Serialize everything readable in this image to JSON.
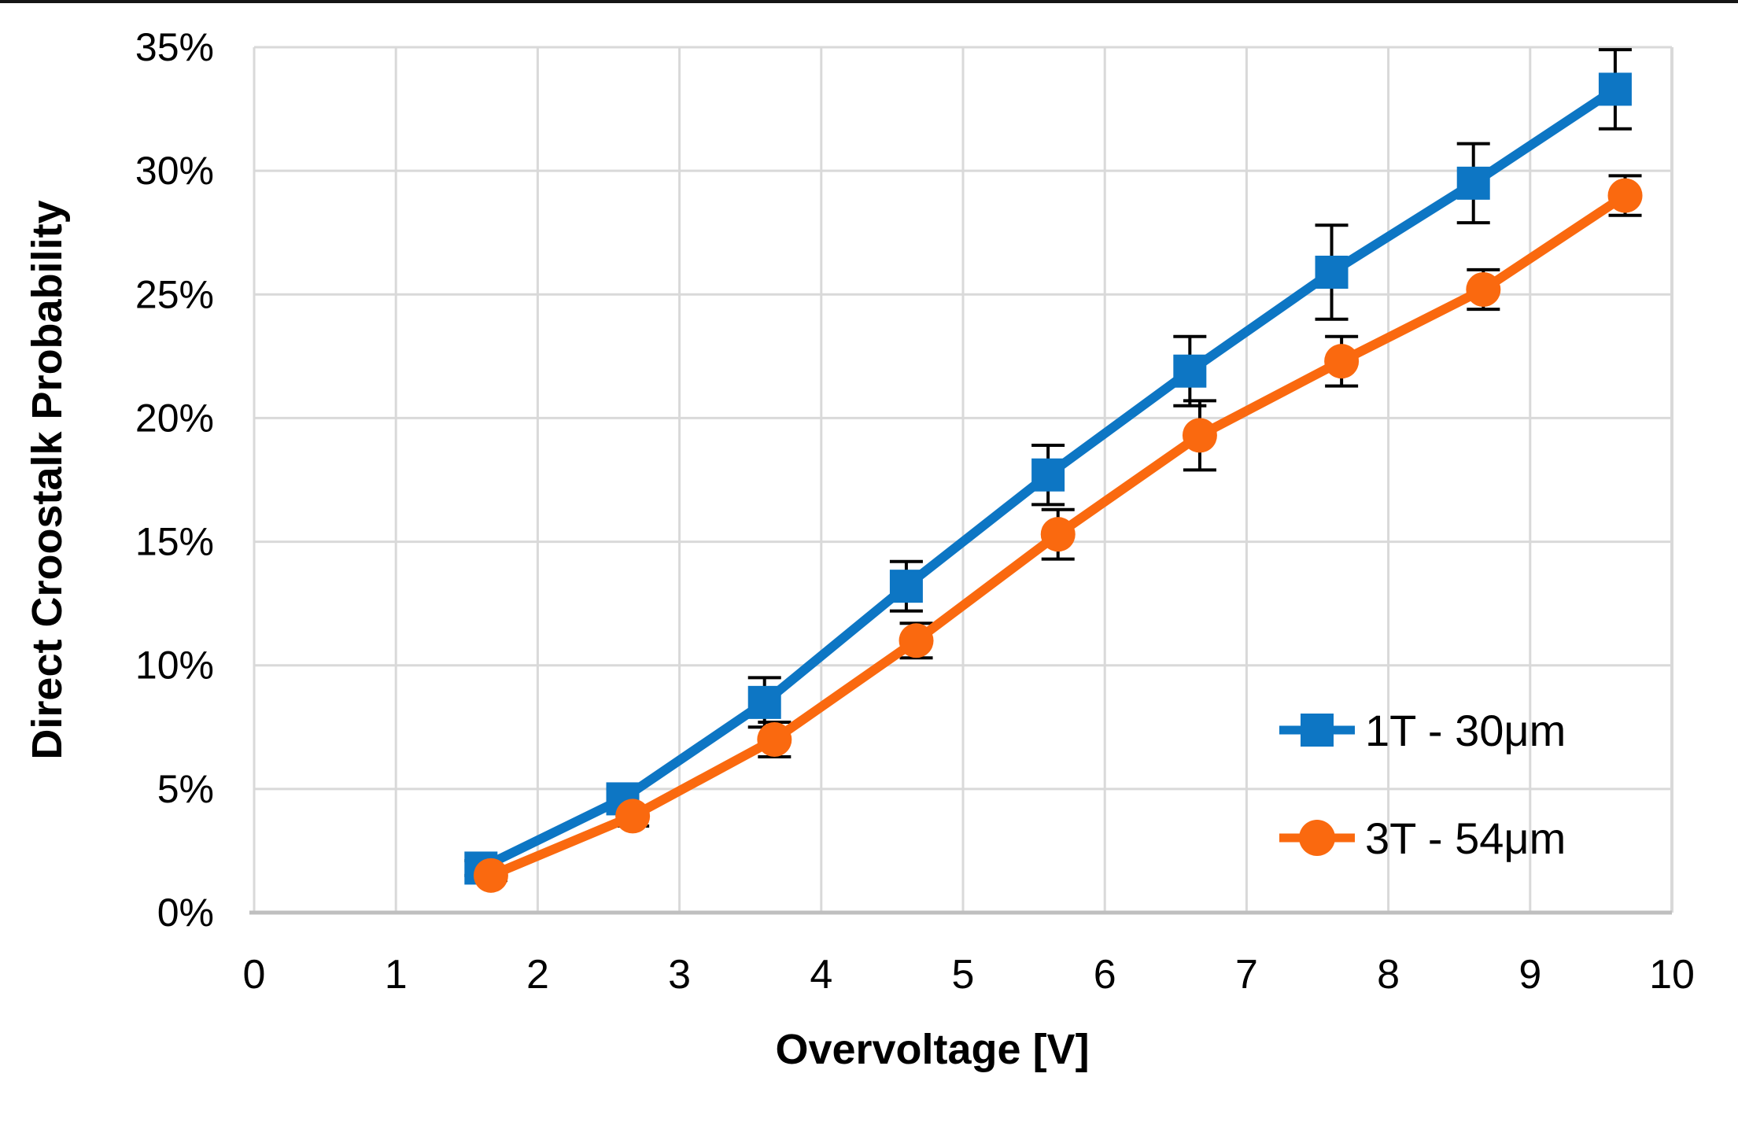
{
  "figure": {
    "background": "#FFFFFF",
    "top_border_color": "#161616"
  },
  "chart_data": {
    "type": "line",
    "title": "",
    "xlabel": "Overvoltage [V]",
    "ylabel": "Direct Croostalk Probability",
    "xlim": [
      0,
      10
    ],
    "ylim": [
      0,
      35
    ],
    "grid": true,
    "legend_position": "inside-bottom-right",
    "grid_color": "#D9D9D9",
    "axis_line_color": "#BFBFBF",
    "error_bar_color": "#000000",
    "x_ticks": {
      "values": [
        0,
        1,
        2,
        3,
        4,
        5,
        6,
        7,
        8,
        9,
        10
      ],
      "labels": [
        "0",
        "1",
        "2",
        "3",
        "4",
        "5",
        "6",
        "7",
        "8",
        "9",
        "10"
      ]
    },
    "y_ticks": {
      "values": [
        0,
        5,
        10,
        15,
        20,
        25,
        30,
        35
      ],
      "labels": [
        "0%",
        "5%",
        "10%",
        "15%",
        "20%",
        "25%",
        "30%",
        "35%"
      ]
    },
    "series": [
      {
        "name": "1T - 30μm",
        "color": "#0D76C4",
        "marker": "square",
        "x": [
          1.6,
          2.6,
          3.6,
          4.6,
          5.6,
          6.6,
          7.6,
          8.6,
          9.6
        ],
        "y_percent": [
          1.8,
          4.6,
          8.5,
          13.2,
          17.7,
          21.9,
          25.9,
          29.5,
          33.3
        ],
        "y_err_percent": [
          0.3,
          0.4,
          1.0,
          1.0,
          1.2,
          1.4,
          1.9,
          1.6,
          1.6
        ]
      },
      {
        "name": "3T - 54μm",
        "color": "#FA690F",
        "marker": "circle",
        "x": [
          1.67,
          2.67,
          3.67,
          4.67,
          5.67,
          6.67,
          7.67,
          8.67,
          9.67
        ],
        "y_percent": [
          1.5,
          3.9,
          7.0,
          11.0,
          15.3,
          19.3,
          22.3,
          25.2,
          29.0
        ],
        "y_err_percent": [
          0.2,
          0.4,
          0.7,
          0.7,
          1.0,
          1.4,
          1.0,
          0.8,
          0.8
        ]
      }
    ]
  }
}
